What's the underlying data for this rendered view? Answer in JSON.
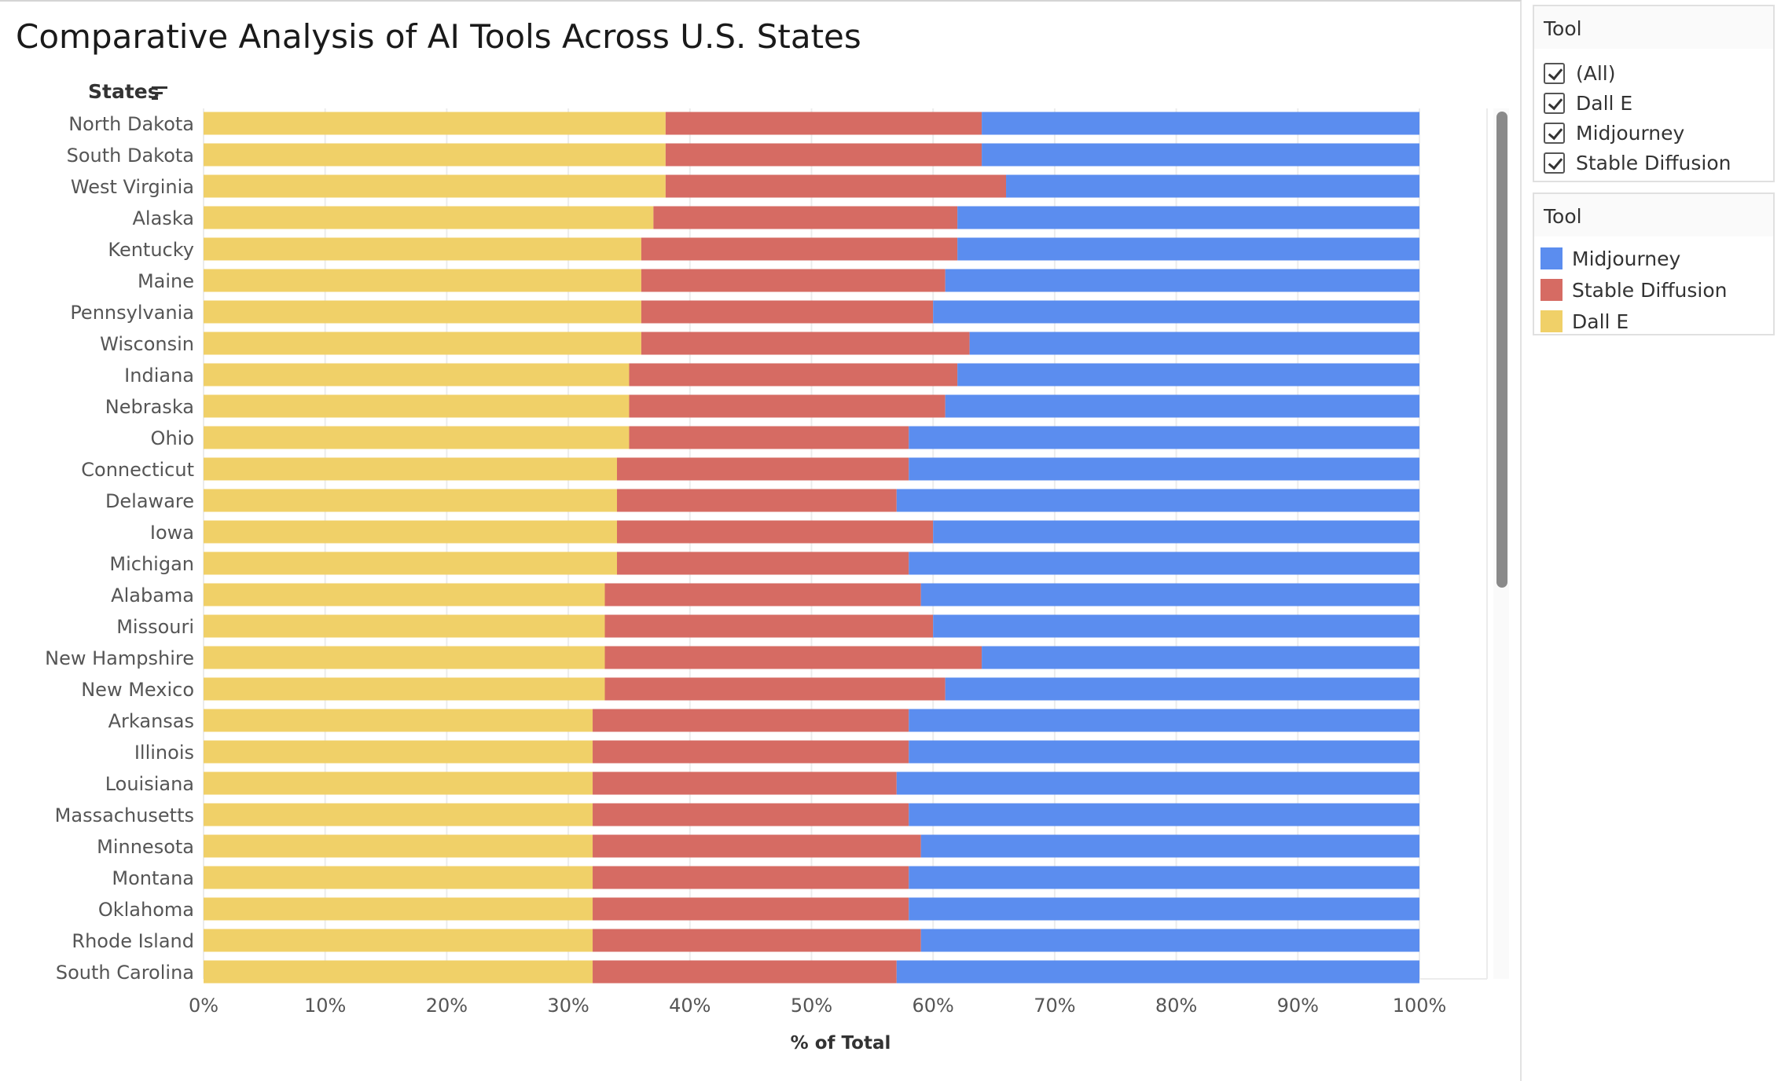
{
  "header": {
    "title": "Comparative Analysis of AI Tools Across U.S. States",
    "row_field": "States",
    "sort_icon": "sort-descending-icon"
  },
  "filter": {
    "title": "Tool",
    "items": [
      {
        "label": "(All)",
        "checked": true
      },
      {
        "label": "Dall E",
        "checked": true
      },
      {
        "label": "Midjourney",
        "checked": true
      },
      {
        "label": "Stable Diffusion",
        "checked": true
      }
    ]
  },
  "legend": {
    "title": "Tool",
    "items": [
      {
        "label": "Midjourney",
        "color": "#5b8def"
      },
      {
        "label": "Stable Diffusion",
        "color": "#d66b63"
      },
      {
        "label": "Dall E",
        "color": "#f0d068"
      }
    ]
  },
  "chart_data": {
    "type": "bar",
    "orientation": "horizontal",
    "stacked": true,
    "normalized": true,
    "xlabel": "% of Total",
    "ylabel": "States",
    "xlim": [
      0,
      100
    ],
    "xticks": [
      "0%",
      "10%",
      "20%",
      "30%",
      "40%",
      "50%",
      "60%",
      "70%",
      "80%",
      "90%",
      "100%"
    ],
    "grid": true,
    "legend_position": "right",
    "categories": [
      "North Dakota",
      "South Dakota",
      "West Virginia",
      "Alaska",
      "Kentucky",
      "Maine",
      "Pennsylvania",
      "Wisconsin",
      "Indiana",
      "Nebraska",
      "Ohio",
      "Connecticut",
      "Delaware",
      "Iowa",
      "Michigan",
      "Alabama",
      "Missouri",
      "New Hampshire",
      "New Mexico",
      "Arkansas",
      "Illinois",
      "Louisiana",
      "Massachusetts",
      "Minnesota",
      "Montana",
      "Oklahoma",
      "Rhode Island",
      "South Carolina"
    ],
    "series": [
      {
        "name": "Dall E",
        "color": "#f0d068",
        "values": [
          38,
          38,
          38,
          37,
          36,
          36,
          36,
          36,
          35,
          35,
          35,
          34,
          34,
          34,
          34,
          33,
          33,
          33,
          33,
          32,
          32,
          32,
          32,
          32,
          32,
          32,
          32,
          32
        ]
      },
      {
        "name": "Stable Diffusion",
        "color": "#d66b63",
        "values": [
          26,
          26,
          28,
          25,
          26,
          25,
          24,
          27,
          27,
          26,
          23,
          24,
          23,
          26,
          24,
          26,
          27,
          31,
          28,
          26,
          26,
          25,
          26,
          27,
          26,
          26,
          27,
          25
        ]
      },
      {
        "name": "Midjourney",
        "color": "#5b8def",
        "values": [
          36,
          36,
          34,
          38,
          38,
          39,
          40,
          37,
          38,
          39,
          42,
          42,
          43,
          40,
          42,
          41,
          40,
          36,
          39,
          42,
          42,
          43,
          42,
          41,
          42,
          42,
          41,
          43
        ]
      }
    ]
  }
}
